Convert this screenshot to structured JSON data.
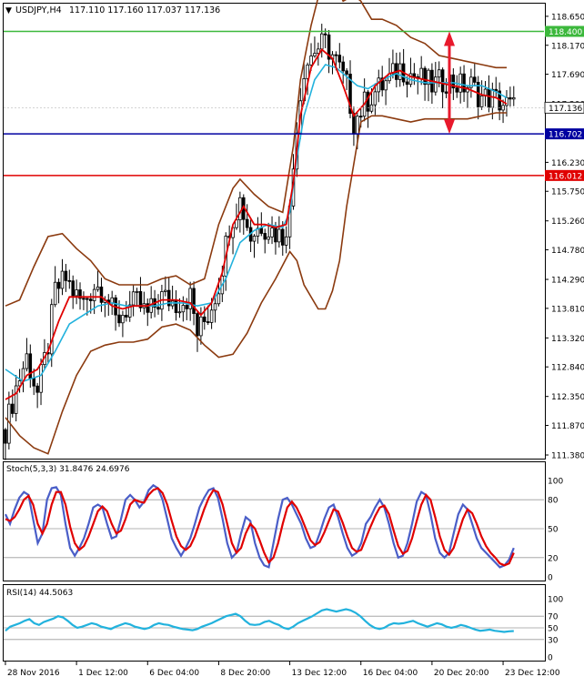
{
  "header": {
    "symbol_label": "USDJPY,H4",
    "ohlc_text": "117.110 117.160 117.037 117.136"
  },
  "stoch_panel": {
    "label": "Stoch(5,3,3) 31.8476 24.6976"
  },
  "rsi_panel": {
    "label": "RSI(14) 44.5063"
  },
  "colors": {
    "candle": "#000000",
    "ma_red": "#e00000",
    "ma_cyan": "#22b2dd",
    "bollinger": "#8b3a0f",
    "line_green": "#3cb83c",
    "line_blue": "#0000a0",
    "line_red": "#e00000",
    "stoch_main": "#4a5ec8",
    "stoch_signal": "#e00000",
    "rsi_line": "#22b2dd",
    "arrow": "#e8192c"
  },
  "chart_data": [
    {
      "type": "candlestick",
      "panel": "price",
      "y_ticks": [
        "118.650",
        "118.170",
        "117.690",
        "117.200",
        "116.720",
        "116.230",
        "115.750",
        "115.260",
        "114.780",
        "114.290",
        "113.810",
        "113.320",
        "112.840",
        "112.350",
        "111.870",
        "111.380"
      ],
      "ylim": [
        111.32,
        118.86
      ],
      "horizontal_lines": [
        {
          "name": "resistance",
          "value": 118.4,
          "label": "118.400",
          "color": "#3cb83c"
        },
        {
          "name": "support",
          "value": 116.702,
          "label": "116.702",
          "color": "#0000a0"
        },
        {
          "name": "stop",
          "value": 116.012,
          "label": "116.012",
          "color": "#e00000"
        }
      ],
      "current_price_label": "117.136",
      "current_price": 117.136,
      "arrow_range": [
        118.4,
        116.702
      ],
      "x_labels": [
        "28 Nov 2016",
        "1 Dec 12:00",
        "6 Dec 04:00",
        "8 Dec 20:00",
        "13 Dec 12:00",
        "16 Dec 04:00",
        "20 Dec 20:00",
        "23 Dec 12:00"
      ],
      "x_label_bars": [
        0,
        20,
        40,
        60,
        80,
        100,
        120,
        140
      ],
      "bars": 152,
      "close_path": [
        [
          0,
          111.8
        ],
        [
          3,
          112.5
        ],
        [
          6,
          113.0
        ],
        [
          9,
          112.4
        ],
        [
          12,
          113.2
        ],
        [
          14,
          114.1
        ],
        [
          17,
          114.3
        ],
        [
          20,
          114.0
        ],
        [
          22,
          113.9
        ],
        [
          25,
          114.2
        ],
        [
          28,
          114.1
        ],
        [
          31,
          113.6
        ],
        [
          34,
          113.8
        ],
        [
          37,
          113.9
        ],
        [
          40,
          113.7
        ],
        [
          44,
          114.0
        ],
        [
          48,
          113.9
        ],
        [
          52,
          114.0
        ],
        [
          54,
          113.4
        ],
        [
          57,
          113.7
        ],
        [
          60,
          114.2
        ],
        [
          63,
          115.2
        ],
        [
          66,
          115.6
        ],
        [
          69,
          115.0
        ],
        [
          72,
          115.2
        ],
        [
          75,
          115.1
        ],
        [
          78,
          115.0
        ],
        [
          80,
          115.4
        ],
        [
          82,
          116.9
        ],
        [
          84,
          117.8
        ],
        [
          87,
          118.1
        ],
        [
          90,
          118.2
        ],
        [
          93,
          117.9
        ],
        [
          96,
          117.5
        ],
        [
          98,
          116.9
        ],
        [
          101,
          117.2
        ],
        [
          104,
          117.4
        ],
        [
          108,
          117.6
        ],
        [
          111,
          117.8
        ],
        [
          114,
          117.7
        ],
        [
          117,
          117.6
        ],
        [
          120,
          117.5
        ],
        [
          124,
          117.6
        ],
        [
          128,
          117.5
        ],
        [
          131,
          117.5
        ],
        [
          134,
          117.3
        ],
        [
          137,
          117.3
        ],
        [
          140,
          117.2
        ],
        [
          143,
          117.136
        ]
      ],
      "bollinger_upper": [
        [
          0,
          113.85
        ],
        [
          4,
          113.95
        ],
        [
          8,
          114.5
        ],
        [
          12,
          115.0
        ],
        [
          16,
          115.05
        ],
        [
          20,
          114.8
        ],
        [
          24,
          114.6
        ],
        [
          28,
          114.3
        ],
        [
          32,
          114.2
        ],
        [
          36,
          114.2
        ],
        [
          40,
          114.2
        ],
        [
          44,
          114.3
        ],
        [
          48,
          114.35
        ],
        [
          52,
          114.2
        ],
        [
          56,
          114.3
        ],
        [
          60,
          115.2
        ],
        [
          64,
          115.8
        ],
        [
          66,
          115.95
        ],
        [
          70,
          115.7
        ],
        [
          74,
          115.5
        ],
        [
          78,
          115.4
        ],
        [
          81,
          116.5
        ],
        [
          83,
          117.6
        ],
        [
          86,
          118.5
        ],
        [
          89,
          119.2
        ],
        [
          92,
          119.3
        ],
        [
          95,
          118.9
        ],
        [
          98,
          119.0
        ],
        [
          100,
          118.9
        ],
        [
          103,
          118.6
        ],
        [
          106,
          118.6
        ],
        [
          110,
          118.5
        ],
        [
          114,
          118.3
        ],
        [
          118,
          118.2
        ],
        [
          122,
          118.0
        ],
        [
          126,
          117.95
        ],
        [
          130,
          117.9
        ],
        [
          134,
          117.85
        ],
        [
          138,
          117.8
        ],
        [
          141,
          117.8
        ]
      ],
      "bollinger_lower": [
        [
          0,
          112.0
        ],
        [
          4,
          111.7
        ],
        [
          8,
          111.5
        ],
        [
          12,
          111.4
        ],
        [
          16,
          112.1
        ],
        [
          20,
          112.7
        ],
        [
          24,
          113.1
        ],
        [
          28,
          113.2
        ],
        [
          32,
          113.25
        ],
        [
          36,
          113.25
        ],
        [
          40,
          113.3
        ],
        [
          44,
          113.5
        ],
        [
          48,
          113.55
        ],
        [
          52,
          113.45
        ],
        [
          56,
          113.2
        ],
        [
          60,
          113.0
        ],
        [
          64,
          113.05
        ],
        [
          68,
          113.4
        ],
        [
          72,
          113.9
        ],
        [
          76,
          114.3
        ],
        [
          80,
          114.75
        ],
        [
          82,
          114.6
        ],
        [
          84,
          114.2
        ],
        [
          86,
          114.0
        ],
        [
          88,
          113.8
        ],
        [
          90,
          113.8
        ],
        [
          92,
          114.1
        ],
        [
          94,
          114.6
        ],
        [
          96,
          115.5
        ],
        [
          98,
          116.2
        ],
        [
          100,
          116.9
        ],
        [
          103,
          117.0
        ],
        [
          106,
          117.0
        ],
        [
          110,
          116.95
        ],
        [
          114,
          116.9
        ],
        [
          118,
          116.95
        ],
        [
          122,
          116.95
        ],
        [
          126,
          116.95
        ],
        [
          130,
          116.95
        ],
        [
          134,
          117.0
        ],
        [
          138,
          117.05
        ],
        [
          141,
          117.05
        ]
      ],
      "ma_fast": [
        [
          0,
          112.3
        ],
        [
          3,
          112.4
        ],
        [
          6,
          112.7
        ],
        [
          9,
          112.8
        ],
        [
          12,
          113.1
        ],
        [
          15,
          113.6
        ],
        [
          18,
          114.0
        ],
        [
          21,
          114.0
        ],
        [
          24,
          114.0
        ],
        [
          27,
          114.0
        ],
        [
          30,
          113.85
        ],
        [
          33,
          113.8
        ],
        [
          36,
          113.85
        ],
        [
          40,
          113.85
        ],
        [
          44,
          113.95
        ],
        [
          48,
          113.95
        ],
        [
          52,
          113.9
        ],
        [
          55,
          113.7
        ],
        [
          58,
          113.9
        ],
        [
          61,
          114.4
        ],
        [
          64,
          115.2
        ],
        [
          67,
          115.5
        ],
        [
          70,
          115.2
        ],
        [
          73,
          115.2
        ],
        [
          76,
          115.15
        ],
        [
          79,
          115.2
        ],
        [
          81,
          115.9
        ],
        [
          83,
          117.0
        ],
        [
          86,
          117.8
        ],
        [
          89,
          118.1
        ],
        [
          92,
          117.95
        ],
        [
          95,
          117.5
        ],
        [
          98,
          117.0
        ],
        [
          101,
          117.2
        ],
        [
          104,
          117.5
        ],
        [
          108,
          117.7
        ],
        [
          111,
          117.75
        ],
        [
          114,
          117.65
        ],
        [
          118,
          117.6
        ],
        [
          122,
          117.55
        ],
        [
          126,
          117.5
        ],
        [
          130,
          117.45
        ],
        [
          134,
          117.35
        ],
        [
          138,
          117.3
        ],
        [
          141,
          117.2
        ]
      ],
      "ma_slow": [
        [
          0,
          112.8
        ],
        [
          5,
          112.6
        ],
        [
          10,
          112.7
        ],
        [
          14,
          113.1
        ],
        [
          18,
          113.55
        ],
        [
          22,
          113.7
        ],
        [
          26,
          113.85
        ],
        [
          30,
          113.9
        ],
        [
          34,
          113.85
        ],
        [
          38,
          113.85
        ],
        [
          42,
          113.85
        ],
        [
          46,
          113.9
        ],
        [
          50,
          113.9
        ],
        [
          54,
          113.85
        ],
        [
          58,
          113.9
        ],
        [
          62,
          114.3
        ],
        [
          66,
          114.9
        ],
        [
          70,
          115.1
        ],
        [
          74,
          115.2
        ],
        [
          78,
          115.15
        ],
        [
          80,
          115.4
        ],
        [
          82,
          116.3
        ],
        [
          84,
          117.0
        ],
        [
          87,
          117.6
        ],
        [
          90,
          117.85
        ],
        [
          93,
          117.8
        ],
        [
          96,
          117.65
        ],
        [
          99,
          117.5
        ],
        [
          102,
          117.45
        ],
        [
          106,
          117.6
        ],
        [
          110,
          117.7
        ],
        [
          114,
          117.6
        ],
        [
          118,
          117.55
        ],
        [
          122,
          117.55
        ],
        [
          126,
          117.55
        ],
        [
          130,
          117.5
        ],
        [
          134,
          117.5
        ],
        [
          138,
          117.4
        ],
        [
          141,
          117.3
        ]
      ]
    },
    {
      "type": "line",
      "panel": "stochastic",
      "ylim": [
        0,
        100
      ],
      "y_ticks": [
        "100",
        "80",
        "50",
        "20",
        "0"
      ],
      "levels": [
        80,
        50,
        20
      ],
      "series": [
        {
          "name": "main",
          "values": [
            65,
            55,
            70,
            82,
            88,
            85,
            60,
            35,
            45,
            80,
            92,
            93,
            85,
            55,
            30,
            22,
            30,
            40,
            55,
            72,
            75,
            72,
            55,
            40,
            42,
            60,
            80,
            85,
            80,
            72,
            78,
            90,
            95,
            92,
            80,
            60,
            40,
            30,
            22,
            30,
            40,
            55,
            72,
            82,
            90,
            92,
            82,
            60,
            35,
            20,
            25,
            45,
            62,
            58,
            35,
            20,
            12,
            10,
            35,
            60,
            80,
            82,
            75,
            65,
            55,
            40,
            30,
            32,
            45,
            60,
            72,
            75,
            62,
            45,
            30,
            22,
            25,
            35,
            55,
            62,
            72,
            80,
            72,
            55,
            35,
            20,
            22,
            35,
            55,
            78,
            88,
            85,
            65,
            40,
            25,
            20,
            25,
            45,
            65,
            75,
            70,
            55,
            40,
            30,
            25,
            20,
            15,
            10,
            12,
            18,
            30
          ]
        },
        {
          "name": "signal",
          "values": [
            60,
            58,
            62,
            70,
            80,
            84,
            75,
            55,
            45,
            55,
            75,
            88,
            88,
            75,
            52,
            35,
            28,
            32,
            42,
            55,
            68,
            73,
            68,
            55,
            45,
            48,
            60,
            75,
            80,
            78,
            77,
            85,
            90,
            92,
            87,
            75,
            58,
            42,
            32,
            28,
            32,
            42,
            56,
            70,
            82,
            90,
            88,
            75,
            55,
            35,
            25,
            30,
            45,
            55,
            50,
            38,
            25,
            15,
            20,
            35,
            55,
            72,
            78,
            72,
            62,
            50,
            38,
            33,
            36,
            46,
            58,
            70,
            68,
            56,
            42,
            30,
            26,
            28,
            40,
            52,
            63,
            72,
            74,
            65,
            48,
            32,
            24,
            27,
            40,
            58,
            75,
            85,
            80,
            62,
            42,
            28,
            23,
            30,
            45,
            60,
            70,
            66,
            55,
            42,
            32,
            25,
            20,
            14,
            12,
            14,
            25
          ]
        }
      ]
    },
    {
      "type": "line",
      "panel": "rsi",
      "ylim": [
        0,
        100
      ],
      "y_ticks": [
        "100",
        "70",
        "50",
        "30",
        "0"
      ],
      "levels": [
        70,
        50,
        30
      ],
      "series": [
        {
          "name": "RSI(14)",
          "values": [
            45,
            52,
            55,
            58,
            62,
            65,
            58,
            55,
            60,
            63,
            66,
            70,
            68,
            62,
            55,
            50,
            52,
            55,
            58,
            56,
            52,
            50,
            48,
            52,
            55,
            58,
            56,
            52,
            50,
            48,
            50,
            55,
            58,
            56,
            55,
            52,
            50,
            48,
            47,
            46,
            48,
            52,
            55,
            58,
            62,
            66,
            70,
            72,
            74,
            70,
            62,
            56,
            55,
            56,
            60,
            62,
            58,
            55,
            50,
            48,
            52,
            58,
            62,
            66,
            70,
            75,
            80,
            82,
            80,
            78,
            80,
            82,
            80,
            76,
            70,
            62,
            55,
            50,
            48,
            50,
            55,
            58,
            57,
            58,
            60,
            62,
            58,
            55,
            52,
            55,
            58,
            56,
            52,
            50,
            52,
            55,
            53,
            50,
            47,
            45,
            46,
            47,
            45,
            44,
            43,
            44,
            44.5
          ]
        }
      ]
    }
  ]
}
